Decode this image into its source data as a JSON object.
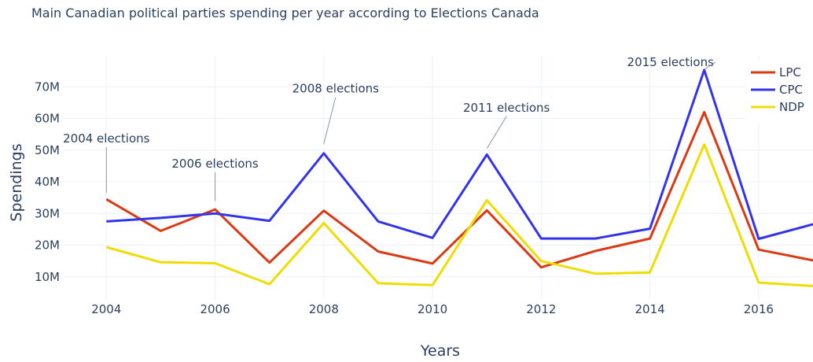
{
  "chart_data": {
    "type": "line",
    "title": "Main Canadian political parties spending per year according to Elections Canada",
    "xlabel": "Years",
    "ylabel": "Spendings",
    "x": [
      2004,
      2005,
      2006,
      2007,
      2008,
      2009,
      2010,
      2011,
      2012,
      2013,
      2014,
      2015,
      2016,
      2017
    ],
    "xlim": [
      2003.2,
      2017.0
    ],
    "ylim": [
      3000000,
      80000000
    ],
    "xticks": [
      {
        "value": 2004,
        "label": "2004"
      },
      {
        "value": 2006,
        "label": "2006"
      },
      {
        "value": 2008,
        "label": "2008"
      },
      {
        "value": 2010,
        "label": "2010"
      },
      {
        "value": 2012,
        "label": "2012"
      },
      {
        "value": 2014,
        "label": "2014"
      },
      {
        "value": 2016,
        "label": "2016"
      }
    ],
    "yticks": [
      {
        "value": 10000000,
        "label": "10M"
      },
      {
        "value": 20000000,
        "label": "20M"
      },
      {
        "value": 30000000,
        "label": "30M"
      },
      {
        "value": 40000000,
        "label": "40M"
      },
      {
        "value": 50000000,
        "label": "50M"
      },
      {
        "value": 60000000,
        "label": "60M"
      },
      {
        "value": 70000000,
        "label": "70M"
      }
    ],
    "grid": true,
    "legend_position": "top-right",
    "series": [
      {
        "name": "LPC",
        "color": "#dc3912",
        "values": [
          34500000,
          24500000,
          31300000,
          14500000,
          30900000,
          18000000,
          14200000,
          31000000,
          13000000,
          18200000,
          22100000,
          62000000,
          18600000,
          15200000
        ]
      },
      {
        "name": "CPC",
        "color": "#3333ee",
        "values": [
          27500000,
          28600000,
          30000000,
          27700000,
          49000000,
          27500000,
          22300000,
          48600000,
          22100000,
          22100000,
          25200000,
          75300000,
          22000000,
          26600000
        ]
      },
      {
        "name": "NDP",
        "color": "#eedd00",
        "values": [
          19400000,
          14600000,
          14300000,
          7700000,
          27000000,
          8000000,
          7400000,
          34200000,
          15000000,
          11000000,
          11400000,
          51800000,
          8200000,
          7100000
        ]
      }
    ],
    "annotations": [
      {
        "text": "2004 elections",
        "x": 2004,
        "y": 36500000
      },
      {
        "text": "2006 elections",
        "x": 2006,
        "y": 34000000
      },
      {
        "text": "2008 elections",
        "x": 2008,
        "y": 52000000
      },
      {
        "text": "2011 elections",
        "x": 2011,
        "y": 50500000
      },
      {
        "text": "2015 elections",
        "x": 2015,
        "y": 75500000
      }
    ]
  }
}
